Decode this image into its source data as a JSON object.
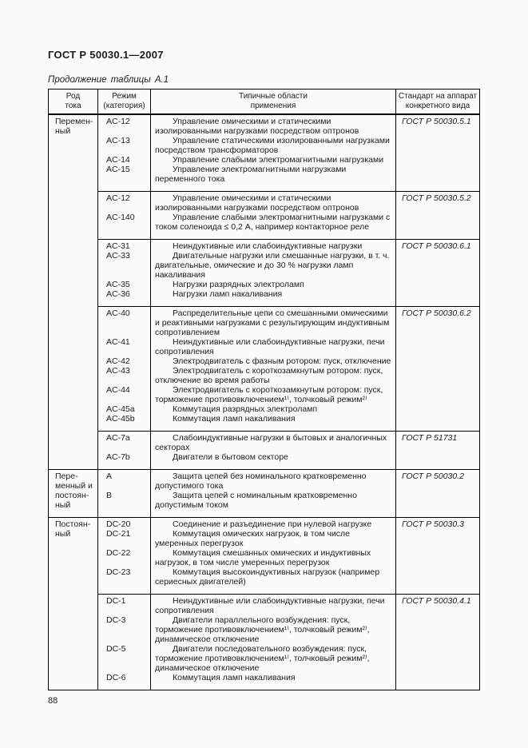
{
  "colors": {
    "text": "#1c1c1c",
    "border": "#000000",
    "page_bg": "#fbfbfb"
  },
  "page": {
    "doc_code": "ГОСТ Р 50030.1—2007",
    "table_caption": "Продолжение таблицы А.1",
    "page_number": "88"
  },
  "table": {
    "columns": [
      "Род\nтока",
      "Режим\n(категория)",
      "Типичные области\nприменения",
      "Стандарт на аппарат\nконкретного вида"
    ],
    "groups": [
      {
        "type_label": "Перемен-ный",
        "blocks": [
          {
            "standard": "ГОСТ Р 50030.5.1",
            "entries": [
              {
                "code": "AC-12",
                "text": "Управление омическими и статическими изолированными нагрузками посредством оптронов"
              },
              {
                "code": "AC-13",
                "text": "Управление статическими изолированными нагрузками посредством трансформаторов"
              },
              {
                "code": "AC-14",
                "text": "Управление слабыми электромагнитными нагрузками"
              },
              {
                "code": "AC-15",
                "text": "Управление электромагнитными нагрузками переменного тока"
              }
            ]
          },
          {
            "standard": "ГОСТ Р 50030.5.2",
            "entries": [
              {
                "code": "AC-12",
                "text": "Управление омическими и статическими изолированными нагрузками посредством оптронов"
              },
              {
                "code": "AC-140",
                "text": "Управление слабыми электромагнитными нагрузками с током соленоида ≤ 0,2 А, например контакторное реле"
              }
            ]
          },
          {
            "standard": "ГОСТ Р 50030.6.1",
            "entries": [
              {
                "code": "AC-31",
                "text": "Неиндуктивные или слабоиндуктивные нагрузки"
              },
              {
                "code": "AC-33",
                "text": "Двигательные нагрузки или смешанные нагрузки, в т. ч. двигательные, омические и до 30 % нагрузки ламп накаливания"
              },
              {
                "code": "AC-35",
                "text": "Нагрузки разрядных электроламп"
              },
              {
                "code": "AC-36",
                "text": "Нагрузки ламп накаливания"
              }
            ]
          },
          {
            "standard": "ГОСТ Р 50030.6.2",
            "entries": [
              {
                "code": "AC-40",
                "text": "Распределительные цепи со смешанными омическими и реактивными нагрузками  с результирующим индуктивным сопротивлением"
              },
              {
                "code": "AC-41",
                "text": "Неиндуктивные или слабоиндуктивные нагрузки, печи сопротивления"
              },
              {
                "code": "AC-42",
                "text": "Электродвигатель с фазным ротором: пуск, отключение"
              },
              {
                "code": "AC-43",
                "text": "Электродвигатель с короткозамкнутым ротором: пуск, отключение во время работы"
              },
              {
                "code": "AC-44",
                "text": "Электродвигатель с короткозамкнутым ротором: пуск, торможение противовключением¹⁾, толчковый режим²⁾"
              },
              {
                "code": "AC-45a",
                "text": "Коммутация разрядных электроламп"
              },
              {
                "code": "AC-45b",
                "text": "Коммутация ламп накаливания"
              }
            ]
          },
          {
            "standard": "ГОСТ Р 51731",
            "entries": [
              {
                "code": "AC-7a",
                "text": "Слабоиндуктивные нагрузки в бытовых и аналогичных секторах"
              },
              {
                "code": "AC-7b",
                "text": "Двигатели в бытовом секторе"
              }
            ]
          }
        ]
      },
      {
        "type_label": "Пере-менный и постоян-ный",
        "blocks": [
          {
            "standard": "ГОСТ Р 50030.2",
            "entries": [
              {
                "code": "A",
                "text": "Защита цепей без номинального кратковременно допустимого  тока"
              },
              {
                "code": "B",
                "text": "Защита цепей с номинальным кратковременно допустимым током"
              }
            ]
          }
        ]
      },
      {
        "type_label": "Постоян-ный",
        "blocks": [
          {
            "standard": "ГОСТ Р 50030.3",
            "entries": [
              {
                "code": "DC-20",
                "text": "Соединение и разъединение  при нулевой нагрузке"
              },
              {
                "code": "DC-21",
                "text": "Коммутация омических нагрузок, в том числе  умеренных перегрузок"
              },
              {
                "code": "DC-22",
                "text": "Коммутация смешанных омических и индуктивных нагрузок, в том числе умеренных перегрузок"
              },
              {
                "code": "DC-23",
                "text": "Коммутация высокоиндуктивных нагрузок (например сериесных двигателей)"
              }
            ]
          },
          {
            "standard": "ГОСТ Р 50030.4.1",
            "entries": [
              {
                "code": "DC-1",
                "text": "Неиндуктивные или слабоиндуктивные нагрузки, печи сопротивления"
              },
              {
                "code": "DC-3",
                "text": "Двигатели параллельного возбуждения: пуск, торможение противовключением¹⁾, толчковый режим²⁾, динамическое отключение"
              },
              {
                "code": "DC-5",
                "text": "Двигатели последовательного возбуждения: пуск, торможение противовключением¹⁾, толчковый режим²⁾, динамическое отключение"
              },
              {
                "code": "DC-6",
                "text": "Коммутация  ламп накаливания"
              }
            ]
          }
        ]
      }
    ]
  }
}
